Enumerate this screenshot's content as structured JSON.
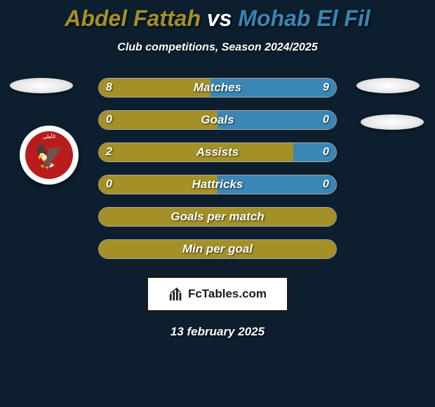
{
  "colors": {
    "background": "#0d1e2e",
    "player1": "#a39128",
    "player2": "#3a86b5",
    "barBorder": "#aaaaaa",
    "text": "#ffffff",
    "brandBoxBg": "#ffffff",
    "brandBoxBorder": "#1a1a1a"
  },
  "title": {
    "player1": "Abdel Fattah",
    "vs": "vs",
    "player2": "Mohab El Fil",
    "fontsize": 32
  },
  "subtitle": "Club competitions, Season 2024/2025",
  "bars": [
    {
      "label": "Matches",
      "left": "8",
      "right": "9",
      "leftPct": 47,
      "rightPct": 53
    },
    {
      "label": "Goals",
      "left": "0",
      "right": "0",
      "leftPct": 50,
      "rightPct": 50
    },
    {
      "label": "Assists",
      "left": "2",
      "right": "0",
      "leftPct": 82,
      "rightPct": 18
    },
    {
      "label": "Hattricks",
      "left": "0",
      "right": "0",
      "leftPct": 50,
      "rightPct": 50
    },
    {
      "label": "Goals per match",
      "left": "",
      "right": "",
      "leftPct": 100,
      "rightPct": 0
    },
    {
      "label": "Min per goal",
      "left": "",
      "right": "",
      "leftPct": 100,
      "rightPct": 0
    }
  ],
  "brand": "FcTables.com",
  "date": "13 february 2025",
  "badge": {
    "text": "الأهلي"
  }
}
